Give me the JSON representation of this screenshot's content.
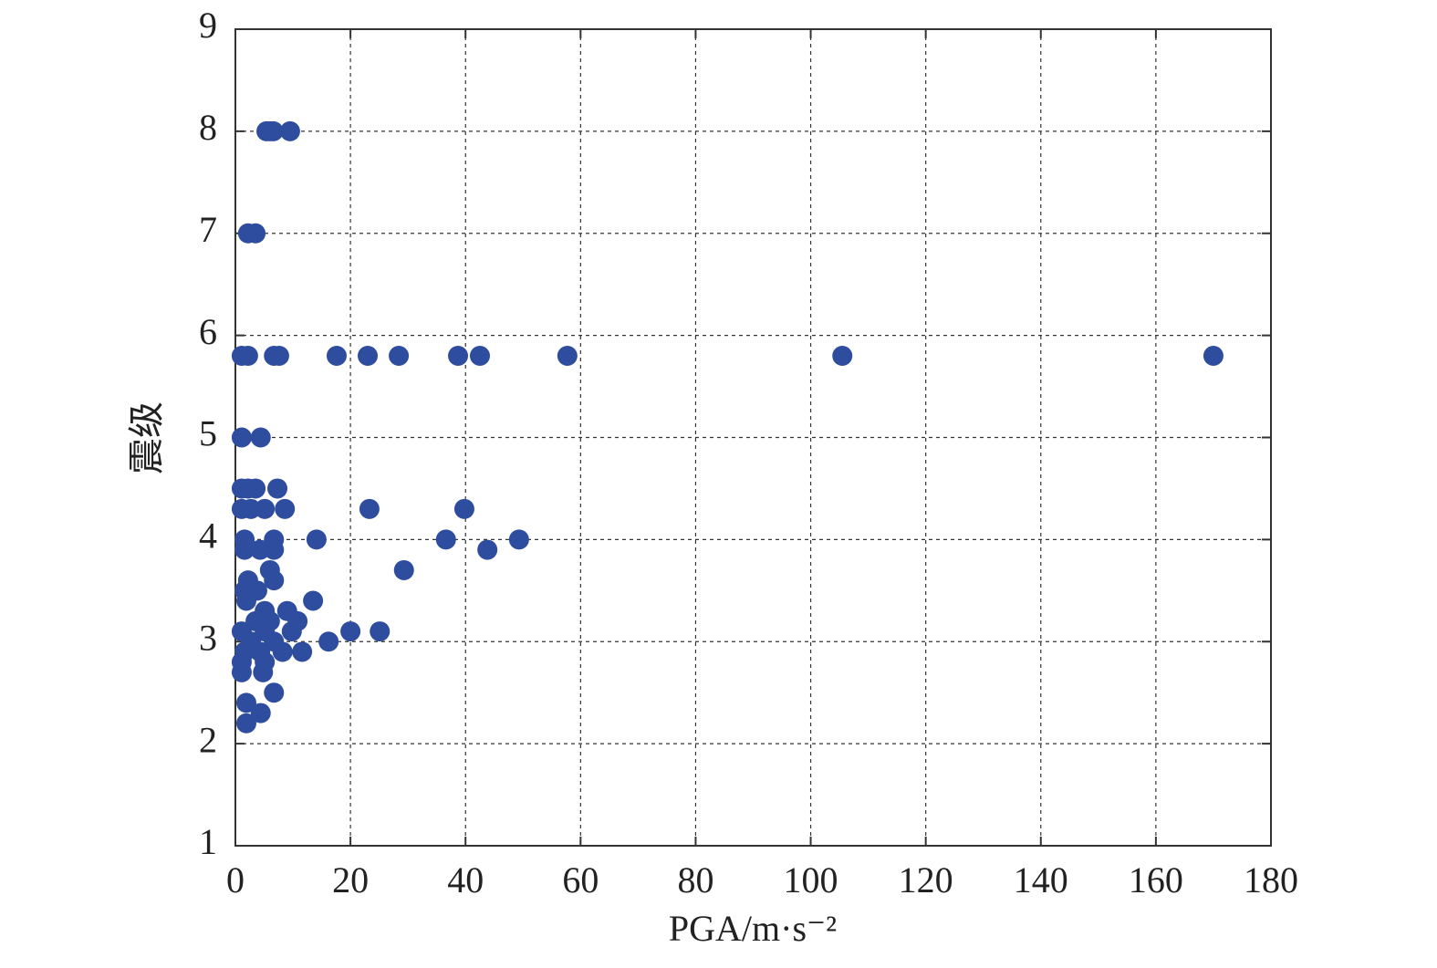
{
  "chart_data": {
    "type": "scatter",
    "xlabel": "PGA/m·s⁻²",
    "ylabel": "震级",
    "color": "#2f4d9e",
    "grid": true,
    "xlim": [
      0,
      180
    ],
    "xticks": [
      0,
      20,
      40,
      60,
      80,
      100,
      120,
      140,
      160,
      180
    ],
    "ylim": [
      1,
      9
    ],
    "yticks": [
      1,
      2,
      3,
      4,
      5,
      6,
      7,
      8,
      9
    ],
    "x": [
      5.4,
      6.0,
      6.6,
      9.5,
      2.2,
      3.5,
      1.1,
      2.2,
      6.7,
      7.6,
      17.6,
      23.0,
      28.4,
      38.7,
      42.5,
      57.7,
      105.5,
      170,
      1.1,
      4.4,
      1.1,
      2.2,
      3.5,
      7.3,
      1.1,
      2.7,
      5.1,
      8.6,
      23.3,
      39.8,
      1.6,
      6.7,
      14.1,
      36.6,
      49.3,
      1.6,
      4.3,
      6.7,
      43.8,
      6.0,
      29.3,
      2.2,
      6.7,
      1.6,
      3.8,
      1.9,
      13.5,
      5.1,
      9.0,
      3.5,
      6.0,
      10.8,
      1.1,
      5.1,
      9.8,
      20.0,
      25.1,
      2.7,
      6.7,
      16.2,
      1.6,
      4.3,
      8.2,
      11.6,
      1.1,
      5.1,
      1.1,
      4.8,
      6.7,
      1.9,
      4.4,
      1.9
    ],
    "y": [
      8,
      8,
      8,
      8,
      7,
      7,
      5.8,
      5.8,
      5.8,
      5.8,
      5.8,
      5.8,
      5.8,
      5.8,
      5.8,
      5.8,
      5.8,
      5.8,
      5,
      5,
      4.5,
      4.5,
      4.5,
      4.5,
      4.3,
      4.3,
      4.3,
      4.3,
      4.3,
      4.3,
      4,
      4,
      4,
      4,
      4,
      3.9,
      3.9,
      3.9,
      3.9,
      3.7,
      3.7,
      3.6,
      3.6,
      3.5,
      3.5,
      3.4,
      3.4,
      3.3,
      3.3,
      3.2,
      3.2,
      3.2,
      3.1,
      3.1,
      3.1,
      3.1,
      3.1,
      3,
      3,
      3,
      2.9,
      2.9,
      2.9,
      2.9,
      2.8,
      2.8,
      2.7,
      2.7,
      2.5,
      2.4,
      2.3,
      2.2
    ]
  }
}
